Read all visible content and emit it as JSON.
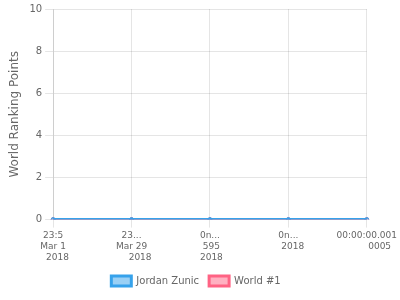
{
  "chart_data": {
    "type": "line",
    "categories": [
      "23:5\nMar 1\n   2018",
      "23...\nMar 29\n      2018",
      "0n...\n 595\n 2018",
      "0n...\n   2018",
      "00:00:00.001\n         0005"
    ],
    "series": [
      {
        "name": "Jordan Zunic",
        "values": [
          0,
          0,
          0,
          0,
          0
        ]
      },
      {
        "name": "World #1",
        "values": [
          0,
          0,
          0,
          0,
          0
        ]
      }
    ],
    "ylabel": "World Ranking Points",
    "ylim": [
      0,
      10
    ],
    "yticks": [
      0,
      2,
      4,
      6,
      8,
      10
    ],
    "grid": true,
    "legend": "bottom"
  }
}
